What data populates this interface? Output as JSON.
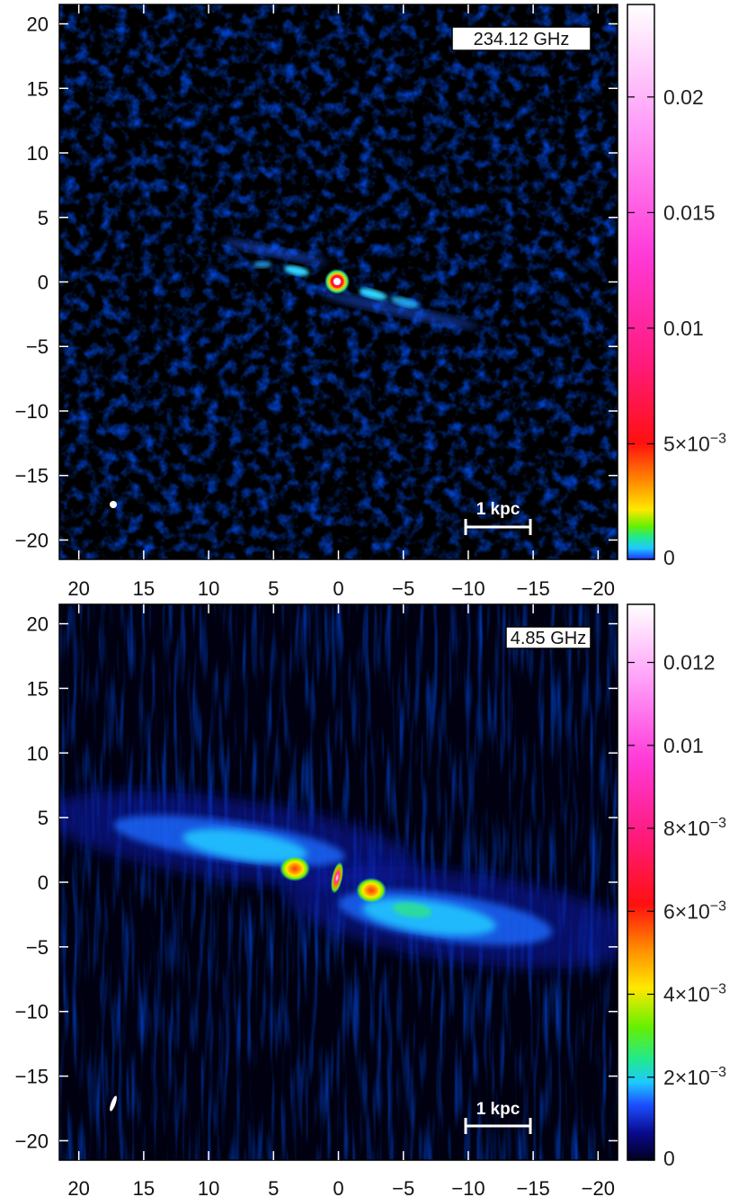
{
  "panels": [
    {
      "id": "top",
      "frequency_label": "234.12 GHz",
      "scale_bar_label": "1 kpc",
      "scale_bar_range": [
        -10,
        -15
      ],
      "colorbar": {
        "min": 0,
        "max": 0.024,
        "ticks": [
          {
            "value": 0,
            "label": "0"
          },
          {
            "value": 0.005,
            "label": "5×10",
            "exp": "−3"
          },
          {
            "value": 0.01,
            "label": "0.01"
          },
          {
            "value": 0.015,
            "label": "0.015"
          },
          {
            "value": 0.02,
            "label": "0.02"
          }
        ]
      }
    },
    {
      "id": "bottom",
      "frequency_label": "4.85 GHz",
      "scale_bar_label": "1 kpc",
      "scale_bar_range": [
        -10,
        -15
      ],
      "colorbar": {
        "min": 0,
        "max": 0.0134,
        "ticks": [
          {
            "value": 0,
            "label": "0"
          },
          {
            "value": 0.002,
            "label": "2×10",
            "exp": "−3"
          },
          {
            "value": 0.004,
            "label": "4×10",
            "exp": "−3"
          },
          {
            "value": 0.006,
            "label": "6×10",
            "exp": "−3"
          },
          {
            "value": 0.008,
            "label": "8×10",
            "exp": "−3"
          },
          {
            "value": 0.01,
            "label": "0.01"
          },
          {
            "value": 0.012,
            "label": "0.012"
          }
        ]
      }
    }
  ],
  "axes": {
    "x_ticks": [
      20,
      15,
      10,
      5,
      0,
      -5,
      -10,
      -15,
      -20
    ],
    "y_ticks": [
      20,
      15,
      10,
      5,
      0,
      -5,
      -10,
      -15,
      -20
    ],
    "x_range": [
      21.5,
      -21.5
    ],
    "y_range": [
      -21.5,
      21.5
    ]
  },
  "colormap": [
    "#000030",
    "#0a0aa0",
    "#1b55ff",
    "#1fc9ff",
    "#20e890",
    "#66f000",
    "#ffe800",
    "#ff8c00",
    "#ff1010",
    "#ff2aa0",
    "#ff55ee",
    "#ffb0ff",
    "#ffffff"
  ]
}
